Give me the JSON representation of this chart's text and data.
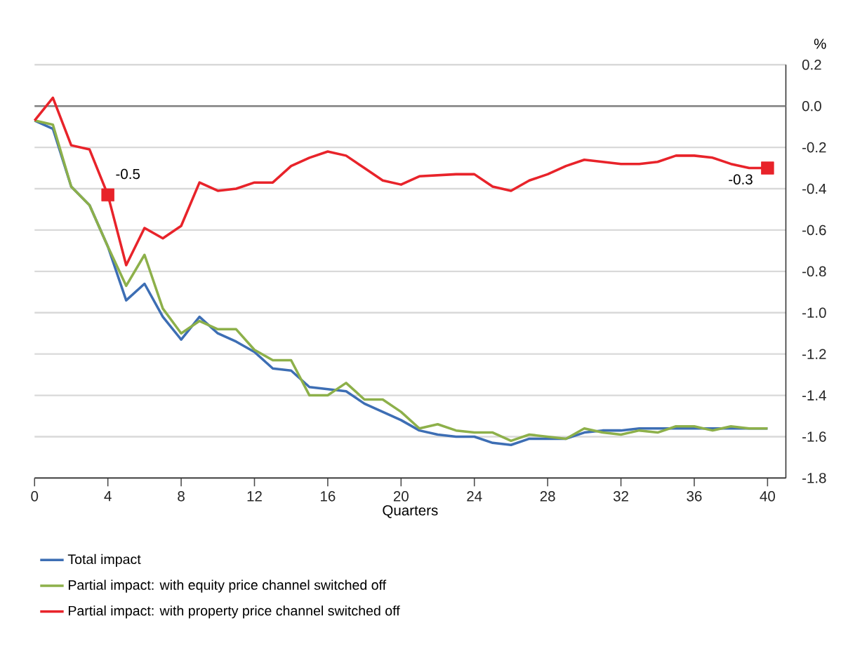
{
  "chart_data": {
    "type": "line",
    "xlabel": "Quarters",
    "ylabel": "%",
    "x": [
      0,
      1,
      2,
      3,
      4,
      5,
      6,
      7,
      8,
      9,
      10,
      11,
      12,
      13,
      14,
      15,
      16,
      17,
      18,
      19,
      20,
      21,
      22,
      23,
      24,
      25,
      26,
      27,
      28,
      29,
      30,
      31,
      32,
      33,
      34,
      35,
      36,
      37,
      38,
      39,
      40
    ],
    "series": [
      {
        "name": "Total impact",
        "color": "#3d6eb4",
        "values": [
          -0.07,
          -0.11,
          -0.39,
          -0.48,
          -0.68,
          -0.94,
          -0.86,
          -1.02,
          -1.13,
          -1.02,
          -1.1,
          -1.14,
          -1.19,
          -1.27,
          -1.28,
          -1.36,
          -1.37,
          -1.38,
          -1.44,
          -1.48,
          -1.52,
          -1.57,
          -1.59,
          -1.6,
          -1.6,
          -1.63,
          -1.64,
          -1.61,
          -1.61,
          -1.61,
          -1.58,
          -1.57,
          -1.57,
          -1.56,
          -1.56,
          -1.56,
          -1.56,
          -1.56,
          -1.56,
          -1.56,
          -1.56
        ]
      },
      {
        "name": "Partial impact: with equity price channel switched off",
        "color": "#8db04a",
        "values": [
          -0.07,
          -0.09,
          -0.39,
          -0.48,
          -0.68,
          -0.87,
          -0.72,
          -0.98,
          -1.1,
          -1.04,
          -1.08,
          -1.08,
          -1.18,
          -1.23,
          -1.23,
          -1.4,
          -1.4,
          -1.34,
          -1.42,
          -1.42,
          -1.48,
          -1.56,
          -1.54,
          -1.57,
          -1.58,
          -1.58,
          -1.62,
          -1.59,
          -1.6,
          -1.61,
          -1.56,
          -1.58,
          -1.59,
          -1.57,
          -1.58,
          -1.55,
          -1.55,
          -1.57,
          -1.55,
          -1.56,
          -1.56
        ]
      },
      {
        "name": "Partial impact: with property price channel switched off",
        "color": "#e8232a",
        "values": [
          -0.07,
          0.04,
          -0.19,
          -0.21,
          -0.43,
          -0.77,
          -0.59,
          -0.64,
          -0.58,
          -0.37,
          -0.41,
          -0.4,
          -0.37,
          -0.37,
          -0.29,
          -0.25,
          -0.22,
          -0.24,
          -0.3,
          -0.36,
          -0.38,
          -0.34,
          -0.335,
          -0.33,
          -0.33,
          -0.39,
          -0.41,
          -0.36,
          -0.33,
          -0.29,
          -0.26,
          -0.27,
          -0.28,
          -0.28,
          -0.27,
          -0.24,
          -0.24,
          -0.25,
          -0.28,
          -0.3,
          -0.3
        ]
      }
    ],
    "annotations": [
      {
        "text": "-0.5",
        "x": 4,
        "y": -0.43
      },
      {
        "text": "-0.3",
        "x": 40,
        "y": -0.3
      }
    ],
    "xlim": [
      0,
      41
    ],
    "ylim": [
      -1.8,
      0.2
    ],
    "xticks": [
      0,
      4,
      8,
      12,
      16,
      20,
      24,
      28,
      32,
      36,
      40
    ],
    "yticks": [
      {
        "value": 0.2,
        "label": "0.2"
      },
      {
        "value": 0,
        "label": "0.0"
      },
      {
        "value": -0.2,
        "label": "-0.2"
      },
      {
        "value": -0.4,
        "label": "-0.4"
      },
      {
        "value": -0.6,
        "label": "-0.6"
      },
      {
        "value": -0.8,
        "label": "-0.8"
      },
      {
        "value": -1,
        "label": "-1.0"
      },
      {
        "value": -1.2,
        "label": "-1.2"
      },
      {
        "value": -1.4,
        "label": "-1.4"
      },
      {
        "value": -1.6,
        "label": "-1.6"
      },
      {
        "value": -1.8,
        "label": "-1.8"
      }
    ],
    "ref_lines": [
      {
        "axis": "y",
        "value": 0,
        "color": "#808080"
      }
    ],
    "grid": "y",
    "legend": "bottom",
    "marker": "none",
    "line_style": "solid"
  }
}
